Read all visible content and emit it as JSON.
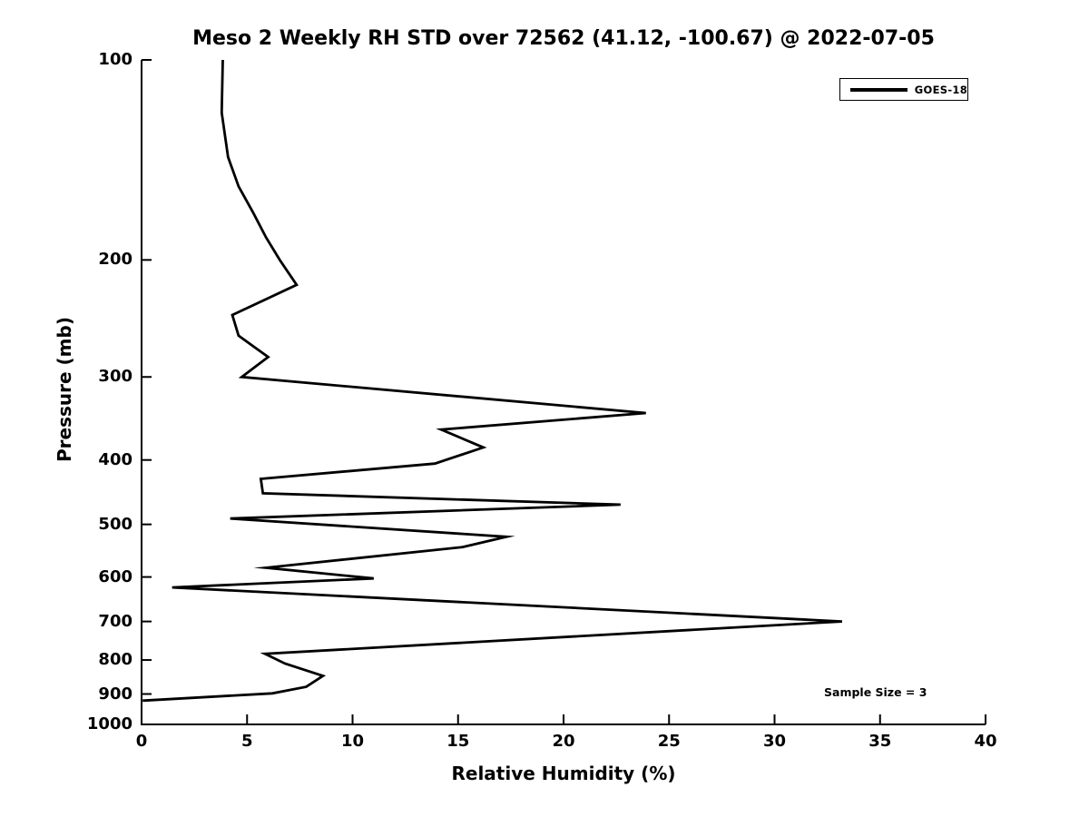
{
  "title": "Meso 2 Weekly RH STD over 72562 (41.12, -100.67) @ 2022-07-05",
  "colors": {
    "line": "#000000",
    "text": "#000000",
    "background": "#ffffff"
  },
  "chart_data": {
    "type": "line",
    "title": "Meso 2 Weekly RH STD over 72562 (41.12, -100.67) @ 2022-07-05",
    "xlabel": "Relative Humidity (%)",
    "ylabel": "Pressure (mb)",
    "xlim": [
      0,
      40
    ],
    "ylim": [
      100,
      1000
    ],
    "yscale": "log",
    "y_inverted": true,
    "grid": false,
    "xticks": [
      0,
      5,
      10,
      15,
      20,
      25,
      30,
      35,
      40
    ],
    "yticks": [
      100,
      200,
      300,
      400,
      500,
      600,
      700,
      800,
      900,
      1000
    ],
    "legend": {
      "position": "upper right",
      "entries": [
        {
          "label": "GOES-18",
          "color": "#000000",
          "linewidth": 4
        }
      ]
    },
    "annotation": "Sample Size = 3",
    "series": [
      {
        "name": "GOES-18",
        "color": "#000000",
        "x_is": "relative_humidity_std_percent",
        "y_is": "pressure_mb",
        "points": [
          [
            3.85,
            100
          ],
          [
            3.8,
            120
          ],
          [
            4.1,
            140
          ],
          [
            4.6,
            155
          ],
          [
            5.3,
            170
          ],
          [
            5.9,
            185
          ],
          [
            6.55,
            200
          ],
          [
            7.35,
            218
          ],
          [
            4.3,
            242
          ],
          [
            4.6,
            260
          ],
          [
            6.0,
            280
          ],
          [
            4.75,
            300
          ],
          [
            23.9,
            340
          ],
          [
            14.2,
            360
          ],
          [
            16.2,
            383
          ],
          [
            13.9,
            405
          ],
          [
            5.65,
            427
          ],
          [
            5.75,
            449
          ],
          [
            22.7,
            467
          ],
          [
            4.2,
            490
          ],
          [
            17.3,
            522
          ],
          [
            15.2,
            541
          ],
          [
            5.9,
            581
          ],
          [
            11.0,
            603
          ],
          [
            1.45,
            622
          ],
          [
            33.2,
            700
          ],
          [
            5.85,
            783
          ],
          [
            6.8,
            810
          ],
          [
            8.6,
            845
          ],
          [
            7.8,
            878
          ],
          [
            6.2,
            898
          ],
          [
            0.05,
            921
          ]
        ]
      }
    ]
  }
}
